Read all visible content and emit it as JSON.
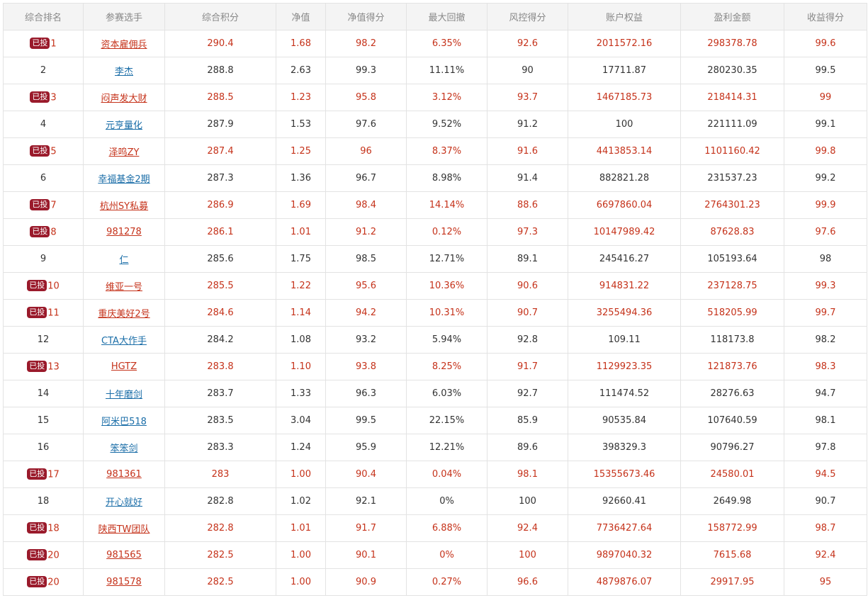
{
  "headers": [
    "综合排名",
    "参赛选手",
    "综合积分",
    "净值",
    "净值得分",
    "最大回撤",
    "风控得分",
    "账户权益",
    "盈利金额",
    "收益得分"
  ],
  "invested_badge": "已投",
  "rows": [
    {
      "rank": "1",
      "badge": true,
      "player": "资本雇佣兵",
      "score": "290.4",
      "nav": "1.68",
      "nav_score": "98.2",
      "drawdown": "6.35%",
      "risk_score": "92.6",
      "equity": "2011572.16",
      "profit": "298378.78",
      "return_score": "99.6"
    },
    {
      "rank": "2",
      "badge": false,
      "player": "李杰",
      "score": "288.8",
      "nav": "2.63",
      "nav_score": "99.3",
      "drawdown": "11.11%",
      "risk_score": "90",
      "equity": "17711.87",
      "profit": "280230.35",
      "return_score": "99.5"
    },
    {
      "rank": "3",
      "badge": true,
      "player": "闷声发大财",
      "score": "288.5",
      "nav": "1.23",
      "nav_score": "95.8",
      "drawdown": "3.12%",
      "risk_score": "93.7",
      "equity": "1467185.73",
      "profit": "218414.31",
      "return_score": "99"
    },
    {
      "rank": "4",
      "badge": false,
      "player": "元亨量化",
      "score": "287.9",
      "nav": "1.53",
      "nav_score": "97.6",
      "drawdown": "9.52%",
      "risk_score": "91.2",
      "equity": "100",
      "profit": "221111.09",
      "return_score": "99.1"
    },
    {
      "rank": "5",
      "badge": true,
      "player": "泽鸣ZY",
      "score": "287.4",
      "nav": "1.25",
      "nav_score": "96",
      "drawdown": "8.37%",
      "risk_score": "91.6",
      "equity": "4413853.14",
      "profit": "1101160.42",
      "return_score": "99.8"
    },
    {
      "rank": "6",
      "badge": false,
      "player": "幸福基金2期",
      "score": "287.3",
      "nav": "1.36",
      "nav_score": "96.7",
      "drawdown": "8.98%",
      "risk_score": "91.4",
      "equity": "882821.28",
      "profit": "231537.23",
      "return_score": "99.2"
    },
    {
      "rank": "7",
      "badge": true,
      "player": "杭州SY私募",
      "score": "286.9",
      "nav": "1.69",
      "nav_score": "98.4",
      "drawdown": "14.14%",
      "risk_score": "88.6",
      "equity": "6697860.04",
      "profit": "2764301.23",
      "return_score": "99.9"
    },
    {
      "rank": "8",
      "badge": true,
      "player": "981278",
      "score": "286.1",
      "nav": "1.01",
      "nav_score": "91.2",
      "drawdown": "0.12%",
      "risk_score": "97.3",
      "equity": "10147989.42",
      "profit": "87628.83",
      "return_score": "97.6"
    },
    {
      "rank": "9",
      "badge": false,
      "player": "仁",
      "score": "285.6",
      "nav": "1.75",
      "nav_score": "98.5",
      "drawdown": "12.71%",
      "risk_score": "89.1",
      "equity": "245416.27",
      "profit": "105193.64",
      "return_score": "98"
    },
    {
      "rank": "10",
      "badge": true,
      "player": "维亚一号",
      "score": "285.5",
      "nav": "1.22",
      "nav_score": "95.6",
      "drawdown": "10.36%",
      "risk_score": "90.6",
      "equity": "914831.22",
      "profit": "237128.75",
      "return_score": "99.3"
    },
    {
      "rank": "11",
      "badge": true,
      "player": "重庆美好2号",
      "score": "284.6",
      "nav": "1.14",
      "nav_score": "94.2",
      "drawdown": "10.31%",
      "risk_score": "90.7",
      "equity": "3255494.36",
      "profit": "518205.99",
      "return_score": "99.7"
    },
    {
      "rank": "12",
      "badge": false,
      "player": "CTA大作手",
      "score": "284.2",
      "nav": "1.08",
      "nav_score": "93.2",
      "drawdown": "5.94%",
      "risk_score": "92.8",
      "equity": "109.11",
      "profit": "118173.8",
      "return_score": "98.2"
    },
    {
      "rank": "13",
      "badge": true,
      "player": "HGTZ",
      "score": "283.8",
      "nav": "1.10",
      "nav_score": "93.8",
      "drawdown": "8.25%",
      "risk_score": "91.7",
      "equity": "1129923.35",
      "profit": "121873.76",
      "return_score": "98.3"
    },
    {
      "rank": "14",
      "badge": false,
      "player": "十年磨剑",
      "score": "283.7",
      "nav": "1.33",
      "nav_score": "96.3",
      "drawdown": "6.03%",
      "risk_score": "92.7",
      "equity": "111474.52",
      "profit": "28276.63",
      "return_score": "94.7"
    },
    {
      "rank": "15",
      "badge": false,
      "player": "阿米巴518",
      "score": "283.5",
      "nav": "3.04",
      "nav_score": "99.5",
      "drawdown": "22.15%",
      "risk_score": "85.9",
      "equity": "90535.84",
      "profit": "107640.59",
      "return_score": "98.1"
    },
    {
      "rank": "16",
      "badge": false,
      "player": "笨笨剑",
      "score": "283.3",
      "nav": "1.24",
      "nav_score": "95.9",
      "drawdown": "12.21%",
      "risk_score": "89.6",
      "equity": "398329.3",
      "profit": "90796.27",
      "return_score": "97.8"
    },
    {
      "rank": "17",
      "badge": true,
      "player": "981361",
      "score": "283",
      "nav": "1.00",
      "nav_score": "90.4",
      "drawdown": "0.04%",
      "risk_score": "98.1",
      "equity": "15355673.46",
      "profit": "24580.01",
      "return_score": "94.5"
    },
    {
      "rank": "18",
      "badge": false,
      "player": "开心就好",
      "score": "282.8",
      "nav": "1.02",
      "nav_score": "92.1",
      "drawdown": "0%",
      "risk_score": "100",
      "equity": "92660.41",
      "profit": "2649.98",
      "return_score": "90.7"
    },
    {
      "rank": "18",
      "badge": true,
      "player": "陕西TW团队",
      "score": "282.8",
      "nav": "1.01",
      "nav_score": "91.7",
      "drawdown": "6.88%",
      "risk_score": "92.4",
      "equity": "7736427.64",
      "profit": "158772.99",
      "return_score": "98.7"
    },
    {
      "rank": "20",
      "badge": true,
      "player": "981565",
      "score": "282.5",
      "nav": "1.00",
      "nav_score": "90.1",
      "drawdown": "0%",
      "risk_score": "100",
      "equity": "9897040.32",
      "profit": "7615.68",
      "return_score": "92.4"
    },
    {
      "rank": "20",
      "badge": true,
      "player": "981578",
      "score": "282.5",
      "nav": "1.00",
      "nav_score": "90.9",
      "drawdown": "0.27%",
      "risk_score": "96.6",
      "equity": "4879876.07",
      "profit": "29917.95",
      "return_score": "95"
    }
  ]
}
